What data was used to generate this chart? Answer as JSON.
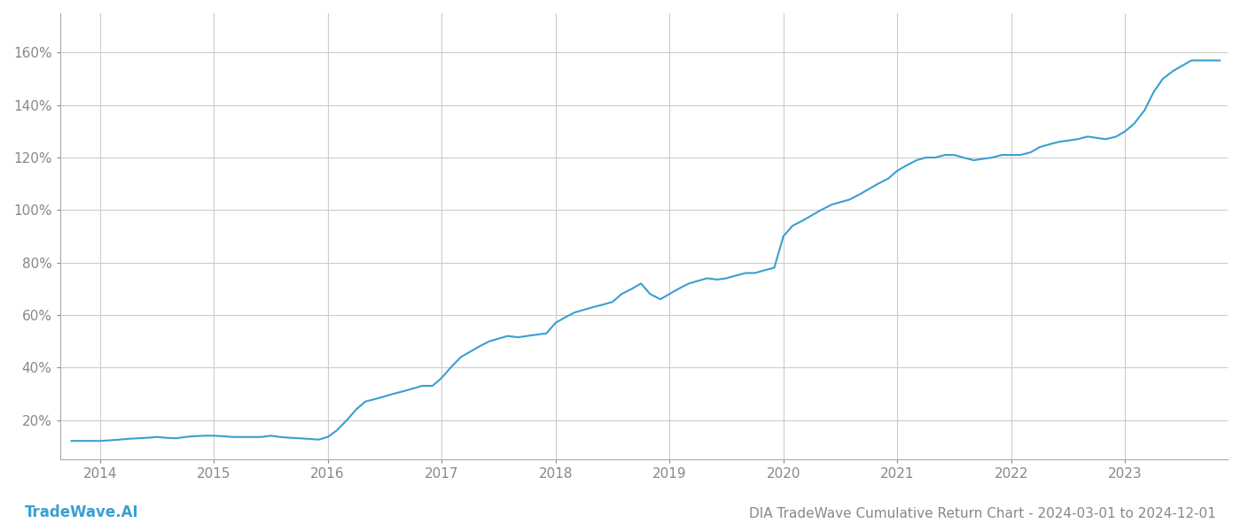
{
  "title": "DIA TradeWave Cumulative Return Chart - 2024-03-01 to 2024-12-01",
  "watermark": "TradeWave.AI",
  "line_color": "#3a9fd1",
  "background_color": "#ffffff",
  "grid_color": "#cccccc",
  "x_years": [
    2014,
    2015,
    2016,
    2017,
    2018,
    2019,
    2020,
    2021,
    2022,
    2023
  ],
  "x_values": [
    2013.75,
    2013.83,
    2013.92,
    2014.0,
    2014.08,
    2014.17,
    2014.25,
    2014.33,
    2014.42,
    2014.5,
    2014.58,
    2014.67,
    2014.75,
    2014.83,
    2014.92,
    2015.0,
    2015.08,
    2015.17,
    2015.25,
    2015.33,
    2015.42,
    2015.5,
    2015.58,
    2015.67,
    2015.75,
    2015.83,
    2015.92,
    2016.0,
    2016.08,
    2016.17,
    2016.25,
    2016.33,
    2016.42,
    2016.5,
    2016.58,
    2016.67,
    2016.75,
    2016.83,
    2016.92,
    2017.0,
    2017.08,
    2017.17,
    2017.25,
    2017.33,
    2017.42,
    2017.5,
    2017.58,
    2017.67,
    2017.75,
    2017.83,
    2017.92,
    2018.0,
    2018.08,
    2018.17,
    2018.25,
    2018.33,
    2018.42,
    2018.5,
    2018.58,
    2018.67,
    2018.75,
    2018.83,
    2018.92,
    2019.0,
    2019.08,
    2019.17,
    2019.25,
    2019.33,
    2019.42,
    2019.5,
    2019.58,
    2019.67,
    2019.75,
    2019.83,
    2019.92,
    2020.0,
    2020.08,
    2020.17,
    2020.25,
    2020.33,
    2020.42,
    2020.5,
    2020.58,
    2020.67,
    2020.75,
    2020.83,
    2020.92,
    2021.0,
    2021.08,
    2021.17,
    2021.25,
    2021.33,
    2021.42,
    2021.5,
    2021.58,
    2021.67,
    2021.75,
    2021.83,
    2021.92,
    2022.0,
    2022.08,
    2022.17,
    2022.25,
    2022.33,
    2022.42,
    2022.5,
    2022.58,
    2022.67,
    2022.75,
    2022.83,
    2022.92,
    2023.0,
    2023.08,
    2023.17,
    2023.25,
    2023.33,
    2023.42,
    2023.5,
    2023.58,
    2023.67,
    2023.75,
    2023.83
  ],
  "y_values": [
    12,
    12,
    12,
    12,
    12.2,
    12.5,
    12.8,
    13,
    13.2,
    13.5,
    13.2,
    13,
    13.5,
    13.8,
    14,
    14,
    13.8,
    13.5,
    13.5,
    13.5,
    13.5,
    14,
    13.5,
    13.2,
    13,
    12.8,
    12.5,
    13.5,
    16,
    20,
    24,
    27,
    28,
    29,
    30,
    31,
    32,
    33,
    33,
    36,
    40,
    44,
    46,
    48,
    50,
    51,
    52,
    51.5,
    52,
    52.5,
    53,
    57,
    59,
    61,
    62,
    63,
    64,
    65,
    68,
    70,
    72,
    68,
    66,
    68,
    70,
    72,
    73,
    74,
    73.5,
    74,
    75,
    76,
    76,
    77,
    78,
    90,
    94,
    96,
    98,
    100,
    102,
    103,
    104,
    106,
    108,
    110,
    112,
    115,
    117,
    119,
    120,
    120,
    121,
    121,
    120,
    119,
    119.5,
    120,
    121,
    121,
    121,
    122,
    124,
    125,
    126,
    126.5,
    127,
    128,
    127.5,
    127,
    128,
    130,
    133,
    138,
    145,
    150,
    153,
    155,
    157,
    157,
    157,
    157
  ],
  "ylim": [
    5,
    175
  ],
  "yticks": [
    20,
    40,
    60,
    80,
    100,
    120,
    140,
    160
  ],
  "xlim": [
    2013.65,
    2023.9
  ],
  "line_width": 1.5,
  "title_fontsize": 11,
  "tick_fontsize": 11,
  "watermark_fontsize": 12
}
